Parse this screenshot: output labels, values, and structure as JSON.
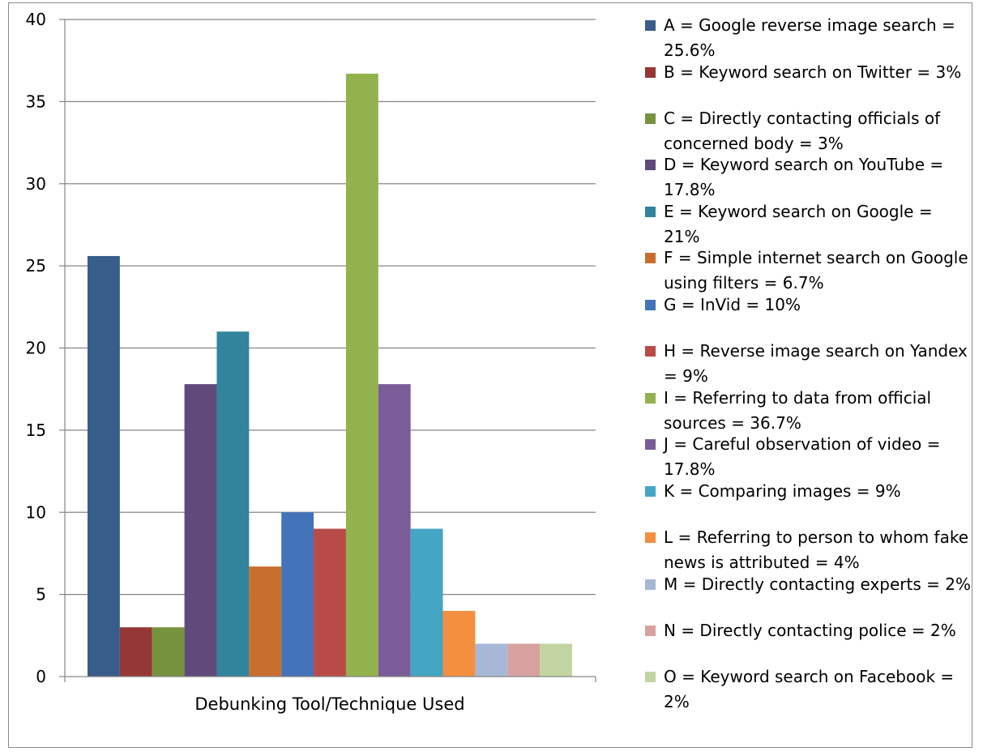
{
  "chart_data": {
    "type": "bar",
    "title": "",
    "xlabel": "Debunking Tool/Technique Used",
    "ylabel": "",
    "ylim": [
      0,
      40
    ],
    "yticks": [
      "0",
      "5",
      "10",
      "15",
      "20",
      "25",
      "30",
      "35",
      "40"
    ],
    "grid": true,
    "legend_position": "right",
    "categories": [
      "A",
      "B",
      "C",
      "D",
      "E",
      "F",
      "G",
      "H",
      "I",
      "J",
      "K",
      "L",
      "M",
      "N",
      "O"
    ],
    "values": [
      25.6,
      3,
      3,
      17.8,
      21,
      6.7,
      10,
      9,
      36.7,
      17.8,
      9,
      4,
      2,
      2,
      2
    ],
    "colors": [
      "#385d8a",
      "#953735",
      "#76923c",
      "#604a7b",
      "#31849b",
      "#c86f2e",
      "#4373b9",
      "#b84a47",
      "#92b24e",
      "#7a5c99",
      "#44a6c3",
      "#f38f3f",
      "#a7b8d7",
      "#d6a19f",
      "#c2d4a1"
    ],
    "legend": [
      "A = Google reverse image search = 25.6%",
      "B = Keyword search on Twitter = 3%",
      "C = Directly contacting officials of concerned body = 3%",
      "D = Keyword search on YouTube = 17.8%",
      "E = Keyword search on Google = 21%",
      "F = Simple internet search on Google using filters = 6.7%",
      "G = InVid = 10%",
      "H = Reverse image search on Yandex = 9%",
      "I = Referring to data from official sources  = 36.7%",
      "J = Careful observation of video = 17.8%",
      "K = Comparing images =  9%",
      "L = Referring to person to whom fake news is attributed = 4%",
      "M = Directly contacting experts = 2%",
      "N = Directly contacting police = 2%",
      "O = Keyword search on Facebook = 2%"
    ]
  }
}
